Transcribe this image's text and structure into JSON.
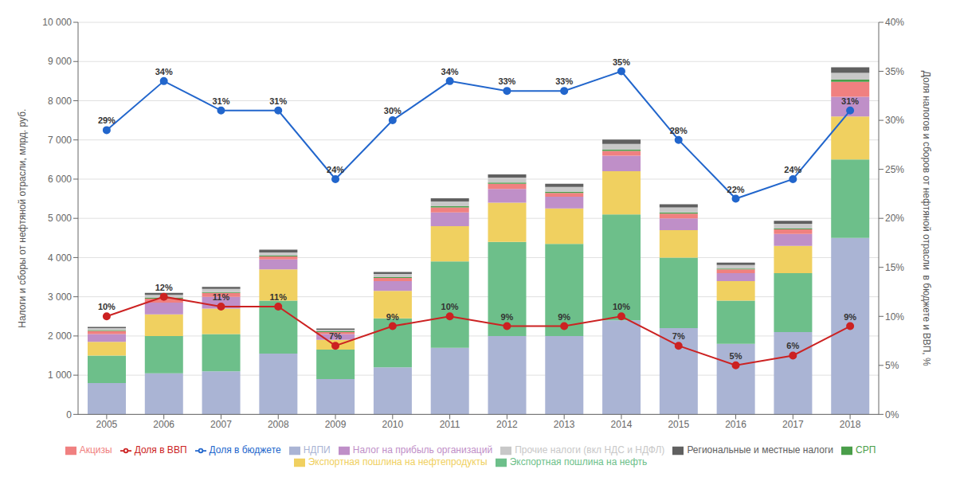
{
  "chart_data": {
    "type": "bar",
    "stacked": true,
    "grid": true,
    "legend": "bottom",
    "y_label": "Налоги и сборы от нефтяной отрасли, млрд. руб.",
    "y2_label": "Доля налогов и сборов от нефтяной отрасли  в бюджете и ВВП, %",
    "categories": [
      "2005",
      "2006",
      "2007",
      "2008",
      "2009",
      "2010",
      "2011",
      "2012",
      "2013",
      "2014",
      "2015",
      "2016",
      "2017",
      "2018"
    ],
    "ylim": [
      0,
      10000
    ],
    "yticks": [
      0,
      {
        "value": 1000,
        "label": "1 000"
      },
      {
        "value": 2000,
        "label": "2 000"
      },
      {
        "value": 3000,
        "label": "3 000"
      },
      {
        "value": 4000,
        "label": "4 000"
      },
      {
        "value": 5000,
        "label": "5 000"
      },
      {
        "value": 6000,
        "label": "6 000"
      },
      {
        "value": 7000,
        "label": "7 000"
      },
      {
        "value": 8000,
        "label": "8 000"
      },
      {
        "value": 9000,
        "label": "9 000"
      },
      {
        "value": 10000,
        "label": "10 000"
      }
    ],
    "y2lim": [
      0,
      0.4
    ],
    "y2ticks": [
      {
        "value": 0,
        "label": "0%"
      },
      {
        "value": 0.05,
        "label": "5%"
      },
      {
        "value": 0.1,
        "label": "10%"
      },
      {
        "value": 0.15,
        "label": "15%"
      },
      {
        "value": 0.2,
        "label": "20%"
      },
      {
        "value": 0.25,
        "label": "25%"
      },
      {
        "value": 0.3,
        "label": "30%"
      },
      {
        "value": 0.35,
        "label": "35%"
      },
      {
        "value": 0.4,
        "label": "40%"
      }
    ],
    "series": [
      {
        "name": "НДПИ",
        "color": "#aab4d4",
        "values": [
          800,
          1050,
          1100,
          1550,
          900,
          1200,
          1700,
          2000,
          2000,
          2400,
          2200,
          1800,
          2100,
          4500
        ]
      },
      {
        "name": "Экспортная пошлина на нефть",
        "color": "#6dbf8a",
        "values": [
          700,
          950,
          950,
          1350,
          750,
          1250,
          2200,
          2400,
          2350,
          2700,
          1800,
          1100,
          1500,
          2000
        ]
      },
      {
        "name": "Экспортная пошлина на нефтепродукты",
        "color": "#f0d060",
        "values": [
          350,
          550,
          650,
          800,
          250,
          700,
          900,
          1000,
          900,
          1100,
          700,
          500,
          700,
          1100
        ]
      },
      {
        "name": "Налог на прибыль организаций",
        "color": "#bf8fc8",
        "values": [
          200,
          300,
          300,
          250,
          150,
          250,
          350,
          350,
          300,
          400,
          300,
          200,
          300,
          500
        ]
      },
      {
        "name": "Акцизы",
        "color": "#f08080",
        "values": [
          80,
          100,
          100,
          80,
          50,
          80,
          130,
          130,
          100,
          120,
          120,
          100,
          120,
          380
        ]
      },
      {
        "name": "СРП",
        "color": "#4a9e4a",
        "values": [
          20,
          20,
          20,
          20,
          20,
          20,
          30,
          30,
          30,
          30,
          30,
          20,
          20,
          60
        ]
      },
      {
        "name": "Прочие налоги (вкл НДС и НДФЛ)",
        "color": "#c8c8c8",
        "values": [
          50,
          80,
          80,
          80,
          40,
          80,
          120,
          130,
          120,
          150,
          130,
          90,
          120,
          170
        ]
      },
      {
        "name": "Региональные и местные налоги",
        "color": "#606060",
        "values": [
          30,
          50,
          50,
          70,
          30,
          50,
          80,
          80,
          80,
          110,
          80,
          60,
          80,
          140
        ]
      },
      {
        "name": "Доля в бюджете",
        "type": "line",
        "axis": "y2",
        "color": "#2266cc",
        "marker": "circle",
        "data_labels": true,
        "values": [
          0.29,
          0.34,
          0.31,
          0.31,
          0.24,
          0.3,
          0.34,
          0.33,
          0.33,
          0.35,
          0.28,
          0.22,
          0.24,
          0.31
        ],
        "value_labels": [
          "29%",
          "34%",
          "31%",
          "31%",
          "24%",
          "30%",
          "34%",
          "33%",
          "33%",
          "35%",
          "28%",
          "22%",
          "24%",
          "31%"
        ]
      },
      {
        "name": "Доля в ВВП",
        "type": "line",
        "axis": "y2",
        "color": "#cc2222",
        "marker": "circle",
        "data_labels": true,
        "values": [
          0.1,
          0.12,
          0.11,
          0.11,
          0.07,
          0.09,
          0.1,
          0.09,
          0.09,
          0.1,
          0.07,
          0.05,
          0.06,
          0.09
        ],
        "value_labels": [
          "10%",
          "12%",
          "11%",
          "11%",
          "7%",
          "9%",
          "10%",
          "9%",
          "9%",
          "10%",
          "7%",
          "5%",
          "6%",
          "9%"
        ]
      }
    ]
  }
}
